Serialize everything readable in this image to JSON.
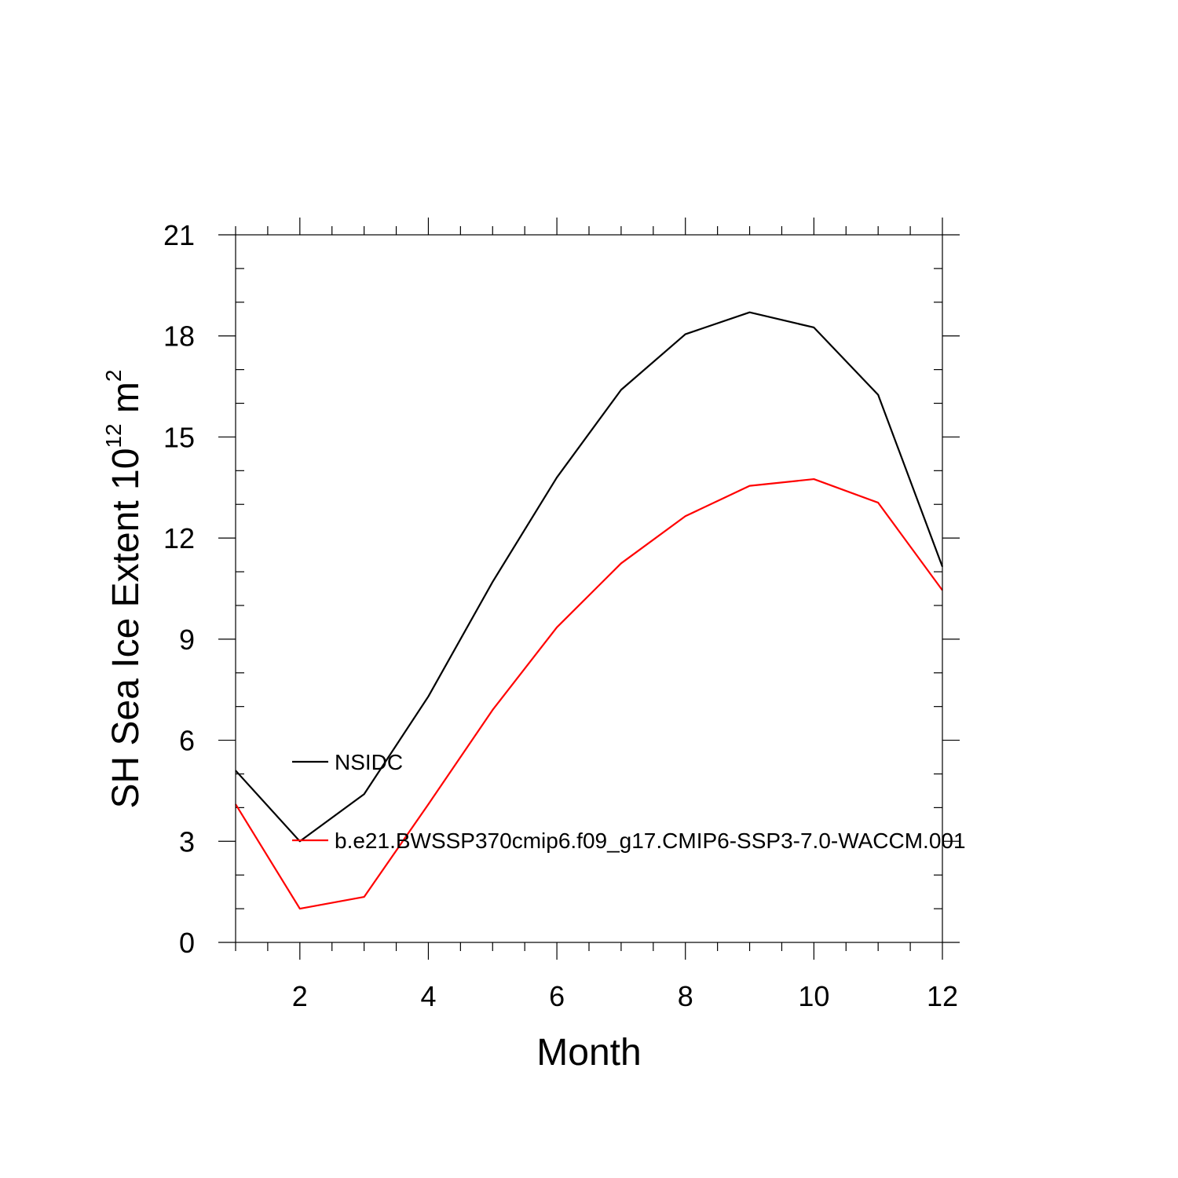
{
  "chart_data": {
    "type": "line",
    "title": "",
    "xlabel": "Month",
    "ylabel": "SH Sea Ice Extent 10",
    "ylabel_superscript_1": "12",
    "ylabel_unit": " m",
    "ylabel_superscript_2": "2",
    "xlim": [
      1,
      12
    ],
    "ylim": [
      0,
      21
    ],
    "x_ticks": [
      2,
      4,
      6,
      8,
      10,
      12
    ],
    "x_tick_labels": [
      "2",
      "4",
      "6",
      "8",
      "10",
      "12"
    ],
    "y_ticks": [
      0,
      3,
      6,
      9,
      12,
      15,
      18,
      21
    ],
    "y_tick_labels": [
      "0",
      "3",
      "6",
      "9",
      "12",
      "15",
      "18",
      "21"
    ],
    "x": [
      1,
      2,
      3,
      4,
      5,
      6,
      7,
      8,
      9,
      10,
      11,
      12
    ],
    "series": [
      {
        "name": "NSIDC",
        "color": "#000000",
        "values": [
          5.1,
          3.0,
          4.4,
          7.3,
          10.7,
          13.8,
          16.4,
          18.05,
          18.7,
          18.25,
          16.25,
          11.15
        ]
      },
      {
        "name": "b.e21.BWSSP370cmip6.f09_g17.CMIP6-SSP3-7.0-WACCM.001",
        "color": "#ff0000",
        "values": [
          4.1,
          1.0,
          1.35,
          4.1,
          6.9,
          9.35,
          11.25,
          12.65,
          13.55,
          13.75,
          13.05,
          10.45
        ]
      }
    ],
    "legend_position": "inside-left"
  }
}
